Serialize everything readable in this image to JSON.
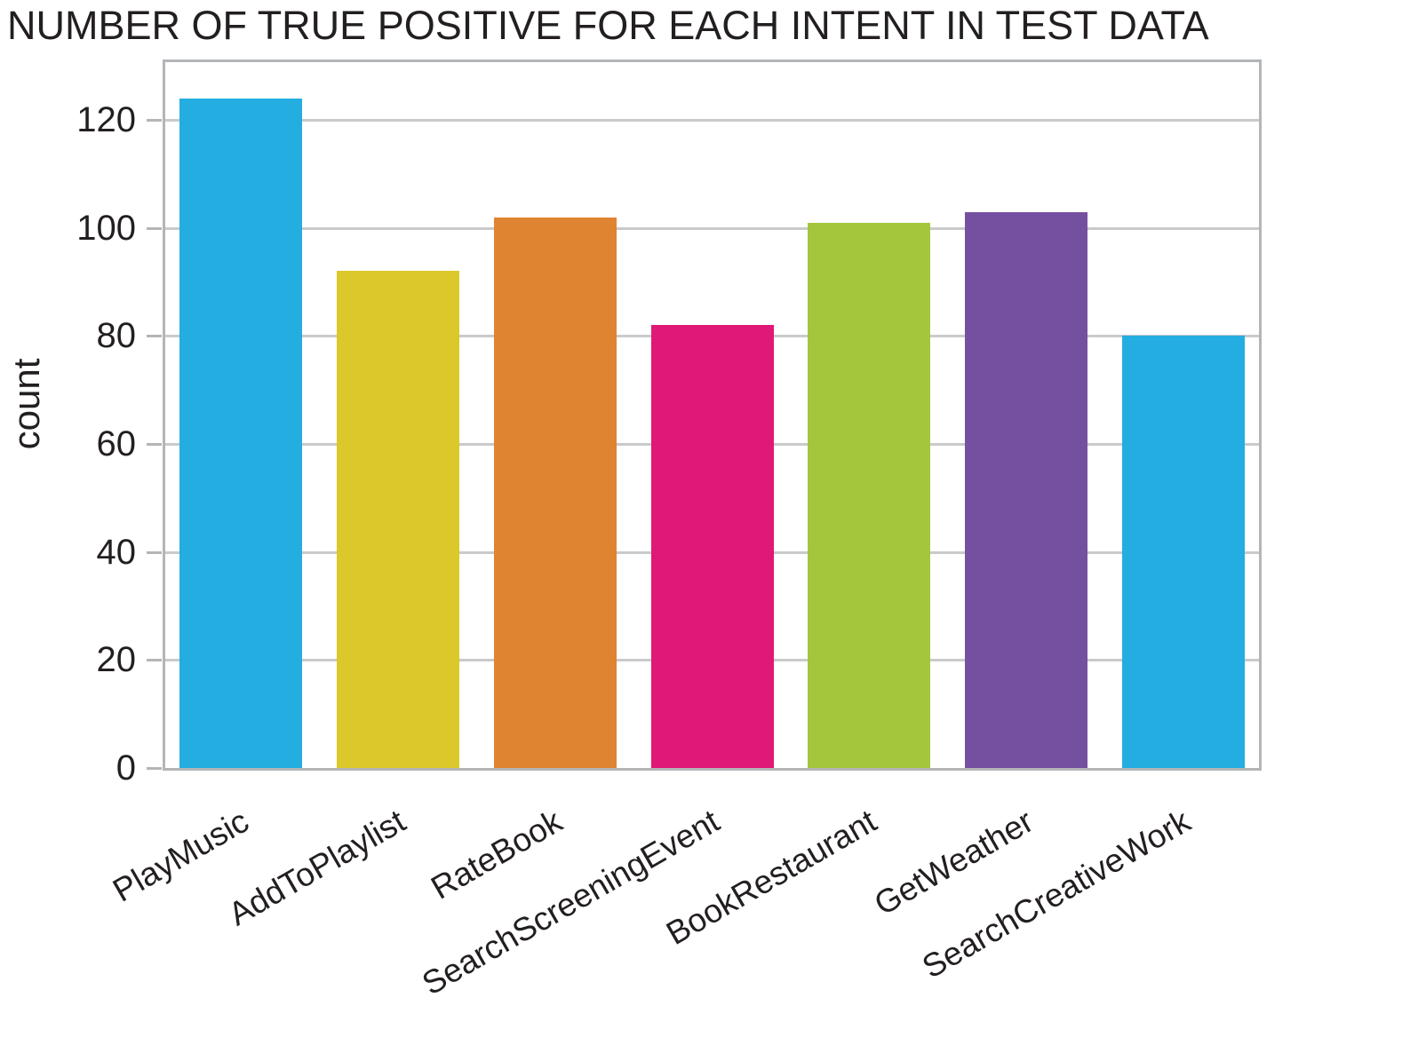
{
  "title": "NUMBER OF TRUE POSITIVE FOR EACH INTENT IN TEST DATA",
  "chart_data": {
    "type": "bar",
    "title": "NUMBER OF TRUE POSITIVE FOR EACH INTENT IN TEST DATA",
    "xlabel": "",
    "ylabel": "count",
    "categories": [
      "PlayMusic",
      "AddToPlaylist",
      "RateBook",
      "SearchScreeningEvent",
      "BookRestaurant",
      "GetWeather",
      "SearchCreativeWork"
    ],
    "values": [
      124,
      92,
      102,
      82,
      101,
      103,
      80
    ],
    "bar_colors": [
      "#24ade0",
      "#dbc82a",
      "#df8431",
      "#e01876",
      "#a4c63c",
      "#7550a1",
      "#24ade0"
    ],
    "yticks": [
      0,
      20,
      40,
      60,
      80,
      100,
      120
    ],
    "ylim": [
      0,
      130.7
    ],
    "grid": "horizontal",
    "legend": "none",
    "x_tick_rotation_deg": 30
  },
  "colors": {
    "grid": "#c9cacb",
    "spine": "#b3b5b7",
    "text": "#231f20",
    "background": "#ffffff"
  }
}
